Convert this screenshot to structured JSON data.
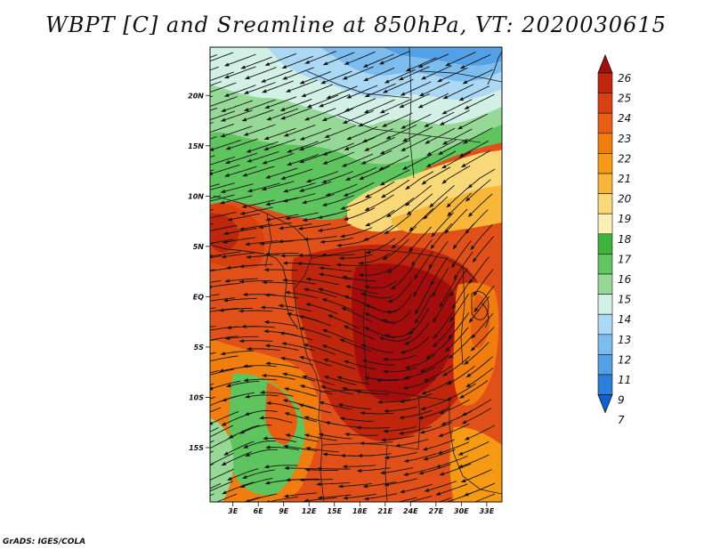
{
  "title": "WBPT [C] and Sreamline at 850hPa, VT: 2020030615",
  "footer": "GrADS: IGES/COLA",
  "map": {
    "lat_labels": [
      "20N",
      "15N",
      "10N",
      "5N",
      "EQ",
      "5S",
      "10S",
      "15S"
    ],
    "lat_values": [
      20,
      15,
      10,
      5,
      0,
      -5,
      -10,
      -15
    ],
    "lon_labels": [
      "3E",
      "6E",
      "9E",
      "12E",
      "15E",
      "18E",
      "21E",
      "24E",
      "27E",
      "30E",
      "33E"
    ],
    "lon_values": [
      3,
      6,
      9,
      12,
      15,
      18,
      21,
      24,
      27,
      30,
      33
    ],
    "lon_range": [
      0.3,
      34.8
    ],
    "lat_range": [
      -20.4,
      24.8
    ]
  },
  "colorbar": {
    "labels": [
      "26",
      "25",
      "24",
      "23",
      "22",
      "21",
      "20",
      "19",
      "18",
      "17",
      "16",
      "15",
      "14",
      "13",
      "12",
      "11",
      "9",
      "7"
    ],
    "colors": [
      "#a50d0d",
      "#c0260c",
      "#d8400f",
      "#e85d12",
      "#f07d0d",
      "#f59a12",
      "#f8b738",
      "#f9d878",
      "#faf0b4",
      "#3cb43c",
      "#60c660",
      "#96d996",
      "#d2f0e6",
      "#aad8f5",
      "#7cbcee",
      "#52a0e6",
      "#2a80dc",
      "#0d62d0"
    ]
  }
}
